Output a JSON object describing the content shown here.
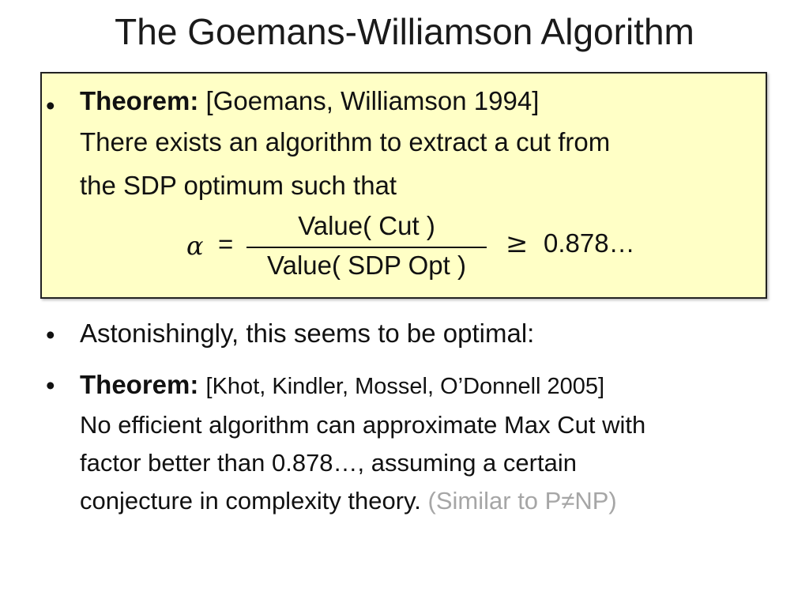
{
  "slide": {
    "title": "The Goemans-Williamson Algorithm"
  },
  "box": {
    "theorem_label": "Theorem:",
    "citation": "[Goemans, Williamson 1994]",
    "line2": "There exists an algorithm to extract a cut from",
    "line3": "the SDP optimum such that",
    "formula": {
      "alpha": "α",
      "equals": "=",
      "numerator": "Value( Cut )",
      "denominator": "Value( SDP Opt )",
      "relation": "≥",
      "value": "0.878…"
    }
  },
  "bullet2": {
    "text": "Astonishingly, this seems to be optimal:"
  },
  "bullet3": {
    "theorem_label": "Theorem:",
    "citation": "[Khot, Kindler, Mossel, O’Donnell 2005]",
    "line2": "No efficient algorithm can approximate Max Cut with",
    "line3": "factor better than 0.878…, assuming a certain",
    "line4": "conjecture in complexity theory.",
    "aside": "(Similar to P≠NP)"
  },
  "bullet_symbol": "•"
}
